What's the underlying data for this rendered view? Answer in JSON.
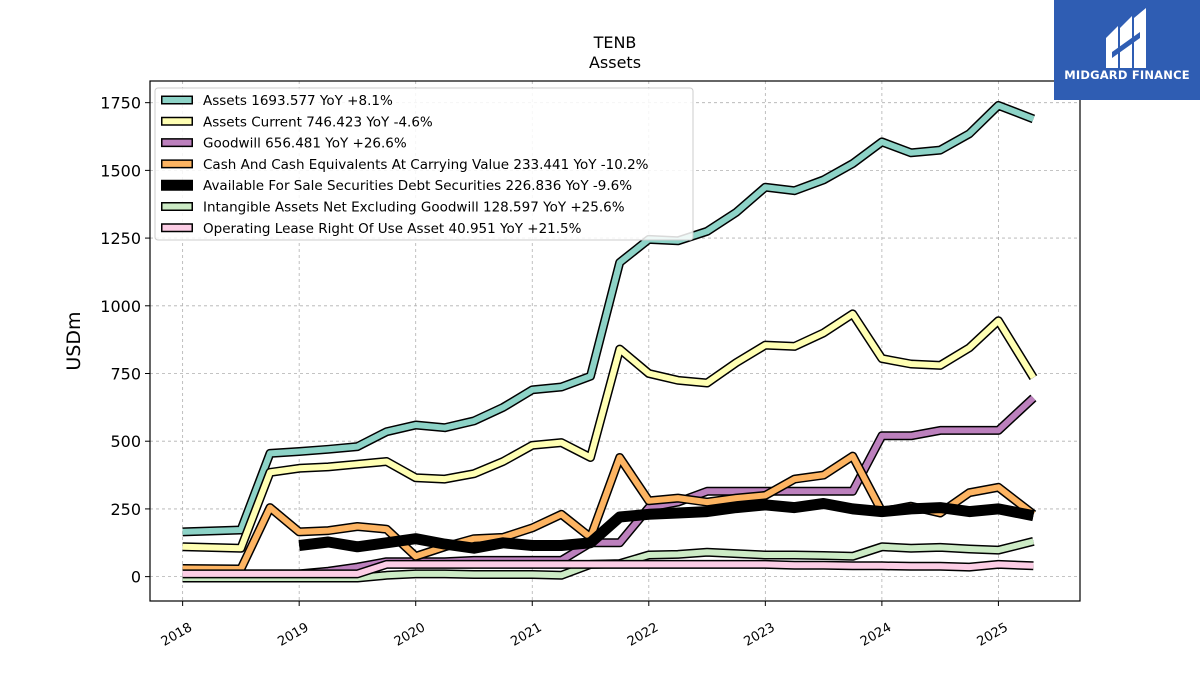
{
  "logo": {
    "name": "MIDGARD FINANCE"
  },
  "chart_data": {
    "type": "line",
    "title": "TENB",
    "subtitle": "Assets",
    "ylabel": "USDm",
    "xlabel": "",
    "ylim": [
      -90,
      1830
    ],
    "xlim": [
      2017.72,
      2025.7
    ],
    "yticks": [
      0,
      250,
      500,
      750,
      1000,
      1250,
      1500,
      1750
    ],
    "ytick_labels": [
      "0",
      "250",
      "500",
      "750",
      "1000",
      "1250",
      "1500",
      "1750"
    ],
    "xticks": [
      2018,
      2019,
      2020,
      2021,
      2022,
      2023,
      2024,
      2025
    ],
    "xtick_labels": [
      "2018",
      "2019",
      "2020",
      "2021",
      "2022",
      "2023",
      "2024",
      "2025"
    ],
    "grid": true,
    "legend_position": "top-left",
    "series": [
      {
        "name": "Assets",
        "legend": "Assets  1693.577 YoY +8.1%",
        "color": "#8dd3c7",
        "width": 6,
        "x": [
          2018.0,
          2018.5,
          2018.75,
          2019.0,
          2019.25,
          2019.5,
          2019.75,
          2020.0,
          2020.25,
          2020.5,
          2020.75,
          2021.0,
          2021.25,
          2021.5,
          2021.75,
          2022.0,
          2022.25,
          2022.5,
          2022.75,
          2023.0,
          2023.25,
          2023.5,
          2023.75,
          2024.0,
          2024.25,
          2024.5,
          2024.75,
          2025.0,
          2025.3
        ],
        "y": [
          165,
          172,
          455,
          462,
          470,
          480,
          535,
          560,
          550,
          575,
          625,
          690,
          700,
          740,
          1160,
          1245,
          1240,
          1275,
          1345,
          1438,
          1425,
          1465,
          1525,
          1605,
          1565,
          1575,
          1635,
          1740,
          1690
        ]
      },
      {
        "name": "Assets Current",
        "legend": "Assets Current  746.423 YoY -4.6%",
        "color": "#ffffb3",
        "width": 6,
        "x": [
          2018.0,
          2018.5,
          2018.75,
          2019.0,
          2019.25,
          2019.5,
          2019.75,
          2020.0,
          2020.25,
          2020.5,
          2020.75,
          2021.0,
          2021.25,
          2021.5,
          2021.75,
          2022.0,
          2022.25,
          2022.5,
          2022.75,
          2023.0,
          2023.25,
          2023.5,
          2023.75,
          2024.0,
          2024.25,
          2024.5,
          2024.75,
          2025.0,
          2025.3
        ],
        "y": [
          110,
          105,
          385,
          400,
          405,
          415,
          425,
          365,
          360,
          380,
          425,
          485,
          495,
          440,
          840,
          750,
          725,
          715,
          790,
          855,
          850,
          900,
          970,
          805,
          785,
          780,
          845,
          945,
          735
        ]
      },
      {
        "name": "Goodwill",
        "legend": "Goodwill  656.481 YoY +26.6%",
        "color": "#bc80bd",
        "width": 6,
        "x": [
          2018.0,
          2018.5,
          2018.75,
          2019.0,
          2019.25,
          2019.5,
          2019.75,
          2020.0,
          2020.25,
          2020.5,
          2020.75,
          2021.0,
          2021.25,
          2021.5,
          2021.75,
          2022.0,
          2022.25,
          2022.5,
          2022.75,
          2023.0,
          2023.25,
          2023.5,
          2023.75,
          2024.0,
          2024.25,
          2024.5,
          2024.75,
          2025.0,
          2025.3
        ],
        "y": [
          10,
          10,
          10,
          10,
          20,
          35,
          55,
          55,
          55,
          60,
          60,
          60,
          60,
          125,
          125,
          255,
          275,
          315,
          315,
          315,
          315,
          315,
          315,
          520,
          520,
          540,
          540,
          540,
          660
        ]
      },
      {
        "name": "Cash And Cash Equivalents At Carrying Value",
        "legend": "Cash And Cash Equivalents At Carrying Value  233.441 YoY -10.2%",
        "color": "#fdb462",
        "width": 6,
        "x": [
          2018.0,
          2018.5,
          2018.75,
          2019.0,
          2019.25,
          2019.5,
          2019.75,
          2020.0,
          2020.25,
          2020.5,
          2020.75,
          2021.0,
          2021.25,
          2021.5,
          2021.75,
          2022.0,
          2022.25,
          2022.5,
          2022.75,
          2023.0,
          2023.25,
          2023.5,
          2023.75,
          2024.0,
          2024.25,
          2024.5,
          2024.75,
          2025.0,
          2025.3
        ],
        "y": [
          30,
          28,
          255,
          165,
          170,
          185,
          175,
          75,
          110,
          140,
          145,
          180,
          230,
          145,
          440,
          280,
          290,
          275,
          290,
          300,
          360,
          375,
          445,
          240,
          260,
          235,
          310,
          330,
          230
        ]
      },
      {
        "name": "Available For Sale Securities Debt Securities",
        "legend": "Available For Sale Securities Debt Securities  226.836 YoY -9.6%",
        "color": "#000000",
        "width": 8,
        "x": [
          2019.0,
          2019.25,
          2019.5,
          2019.75,
          2020.0,
          2020.25,
          2020.5,
          2020.75,
          2021.0,
          2021.25,
          2021.5,
          2021.75,
          2022.0,
          2022.25,
          2022.5,
          2022.75,
          2023.0,
          2023.25,
          2023.5,
          2023.75,
          2024.0,
          2024.25,
          2024.5,
          2024.75,
          2025.0,
          2025.3
        ],
        "y": [
          115,
          128,
          110,
          125,
          140,
          120,
          105,
          125,
          115,
          115,
          125,
          220,
          230,
          235,
          240,
          255,
          265,
          255,
          270,
          250,
          240,
          250,
          255,
          240,
          250,
          225
        ]
      },
      {
        "name": "Intangible Assets Net Excluding Goodwill",
        "legend": "Intangible Assets Net Excluding Goodwill  128.597 YoY +25.6%",
        "color": "#ccebc5",
        "width": 6,
        "x": [
          2018.0,
          2018.5,
          2018.75,
          2019.0,
          2019.25,
          2019.5,
          2019.75,
          2020.0,
          2020.25,
          2020.5,
          2020.75,
          2021.0,
          2021.25,
          2021.5,
          2021.75,
          2022.0,
          2022.25,
          2022.5,
          2022.75,
          2023.0,
          2023.25,
          2023.5,
          2023.75,
          2024.0,
          2024.25,
          2024.5,
          2024.75,
          2025.0,
          2025.3
        ],
        "y": [
          -5,
          -5,
          -5,
          -5,
          -5,
          -5,
          5,
          10,
          10,
          8,
          8,
          8,
          5,
          45,
          48,
          80,
          82,
          90,
          85,
          80,
          80,
          78,
          75,
          110,
          105,
          108,
          102,
          98,
          130
        ]
      },
      {
        "name": "Operating Lease Right Of Use Asset",
        "legend": "Operating Lease Right Of Use Asset  40.951 YoY +21.5%",
        "color": "#fccde5",
        "width": 6,
        "x": [
          2018.0,
          2018.5,
          2018.75,
          2019.0,
          2019.25,
          2019.5,
          2019.75,
          2020.0,
          2020.25,
          2020.5,
          2020.75,
          2021.0,
          2021.25,
          2021.5,
          2021.75,
          2022.0,
          2022.25,
          2022.5,
          2022.75,
          2023.0,
          2023.25,
          2023.5,
          2023.75,
          2024.0,
          2024.25,
          2024.5,
          2024.75,
          2025.0,
          2025.3
        ],
        "y": [
          10,
          10,
          10,
          10,
          10,
          10,
          45,
          45,
          45,
          45,
          45,
          45,
          45,
          45,
          45,
          45,
          45,
          45,
          45,
          45,
          42,
          42,
          40,
          40,
          38,
          38,
          35,
          45,
          40
        ]
      }
    ]
  }
}
